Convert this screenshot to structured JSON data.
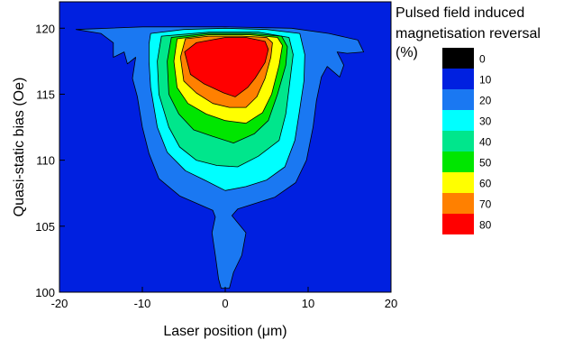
{
  "chart_data": {
    "type": "heatmap",
    "subtype": "filled-contour",
    "xlabel": "Laser position (μm)",
    "ylabel": "Quasi-static bias (Oe)",
    "xlim": [
      -20,
      20
    ],
    "ylim": [
      100,
      122
    ],
    "x_ticks": [
      "-20",
      "-10",
      "0",
      "10",
      "20"
    ],
    "x_tick_values": [
      -20,
      -10,
      0,
      10,
      20
    ],
    "y_ticks": [
      "100",
      "105",
      "110",
      "115",
      "120"
    ],
    "y_tick_values": [
      100,
      105,
      110,
      115,
      120
    ],
    "background_color": "#0020e0",
    "colorbar": {
      "title_lines": [
        "Pulsed field induced",
        "magnetisation reversal",
        "(%)"
      ],
      "labels": [
        "0",
        "10",
        "20",
        "30",
        "40",
        "50",
        "60",
        "70",
        "80"
      ],
      "colors": [
        "#000000",
        "#0020e0",
        "#1a78f2",
        "#00ffff",
        "#00e68c",
        "#00e600",
        "#ffff00",
        "#ff8000",
        "#ff0000"
      ]
    },
    "contours": [
      {
        "level": "10-20",
        "color": "#1a78f2",
        "points": [
          [
            -18,
            119.9
          ],
          [
            -15,
            119.6
          ],
          [
            -13.5,
            118.9
          ],
          [
            -13.5,
            117.8
          ],
          [
            -12.2,
            118.2
          ],
          [
            -11.8,
            117.3
          ],
          [
            -10.8,
            117.8
          ],
          [
            -11.2,
            116.2
          ],
          [
            -10.6,
            114.8
          ],
          [
            -10,
            112.5
          ],
          [
            -9.2,
            110.5
          ],
          [
            -8,
            108.6
          ],
          [
            -5.5,
            107.3
          ],
          [
            -1.5,
            106.2
          ],
          [
            -1.2,
            105.7
          ],
          [
            -1.6,
            104.5
          ],
          [
            -1.2,
            102.8
          ],
          [
            -0.8,
            101
          ],
          [
            -0.5,
            100.3
          ],
          [
            0.5,
            100.3
          ],
          [
            1,
            101.5
          ],
          [
            2,
            102.8
          ],
          [
            2.5,
            104.5
          ],
          [
            0.8,
            105.8
          ],
          [
            1.5,
            106.3
          ],
          [
            6,
            107.2
          ],
          [
            8.5,
            108.3
          ],
          [
            9.8,
            110
          ],
          [
            10.6,
            112.5
          ],
          [
            11,
            114.5
          ],
          [
            11.6,
            116.3
          ],
          [
            12.3,
            117.1
          ],
          [
            13.8,
            116.3
          ],
          [
            14.3,
            117.2
          ],
          [
            13.5,
            118.2
          ],
          [
            14.7,
            118.1
          ],
          [
            16.7,
            118.2
          ],
          [
            16,
            119.1
          ],
          [
            12.5,
            119.6
          ],
          [
            8,
            120
          ],
          [
            0,
            120.1
          ],
          [
            -10,
            120.1
          ]
        ]
      },
      {
        "level": "20-30",
        "color": "#00ffff",
        "points": [
          [
            -9,
            119.6
          ],
          [
            -9.2,
            118.8
          ],
          [
            -9.2,
            117.5
          ],
          [
            -9,
            115.5
          ],
          [
            -8.2,
            112.5
          ],
          [
            -7,
            110.6
          ],
          [
            -4.8,
            109.2
          ],
          [
            -2.5,
            108.5
          ],
          [
            0,
            107.7
          ],
          [
            2.5,
            108
          ],
          [
            5,
            108.5
          ],
          [
            7.2,
            109.5
          ],
          [
            8.4,
            111.5
          ],
          [
            8.9,
            113.5
          ],
          [
            9.5,
            116
          ],
          [
            9.6,
            118
          ],
          [
            9,
            119.6
          ],
          [
            5,
            119.9
          ],
          [
            0,
            120
          ],
          [
            -5,
            119.9
          ]
        ]
      },
      {
        "level": "30-40",
        "color": "#00e68c",
        "points": [
          [
            -7.7,
            119.4
          ],
          [
            -8.2,
            117.5
          ],
          [
            -8,
            115
          ],
          [
            -6.8,
            112.5
          ],
          [
            -5.5,
            111
          ],
          [
            -3.5,
            110
          ],
          [
            -1,
            109.6
          ],
          [
            1.5,
            109.5
          ],
          [
            4,
            110.3
          ],
          [
            6.5,
            111.5
          ],
          [
            7.3,
            113.5
          ],
          [
            7.8,
            116
          ],
          [
            8.2,
            118
          ],
          [
            7.7,
            119.3
          ],
          [
            4,
            119.7
          ],
          [
            -2,
            119.7
          ]
        ]
      },
      {
        "level": "40-50",
        "color": "#00e600",
        "points": [
          [
            -6.5,
            119.3
          ],
          [
            -7,
            117.5
          ],
          [
            -6.8,
            115
          ],
          [
            -5.6,
            113.5
          ],
          [
            -3.8,
            112.3
          ],
          [
            -1.5,
            111.8
          ],
          [
            1,
            111.3
          ],
          [
            3.5,
            112
          ],
          [
            5.2,
            113
          ],
          [
            6.3,
            115
          ],
          [
            7.3,
            117.2
          ],
          [
            7.5,
            118.6
          ],
          [
            6.8,
            119.4
          ],
          [
            3,
            119.6
          ],
          [
            -2,
            119.6
          ]
        ]
      },
      {
        "level": "50-60",
        "color": "#ffff00",
        "points": [
          [
            -5.8,
            119.2
          ],
          [
            -6.2,
            117.5
          ],
          [
            -5.8,
            115.5
          ],
          [
            -4.5,
            114.3
          ],
          [
            -2.3,
            113.5
          ],
          [
            0,
            113
          ],
          [
            2.5,
            112.8
          ],
          [
            4.5,
            113.6
          ],
          [
            5.6,
            115
          ],
          [
            6.5,
            117.2
          ],
          [
            6.9,
            118.7
          ],
          [
            6.3,
            119.3
          ],
          [
            3,
            119.5
          ],
          [
            -2,
            119.5
          ]
        ]
      },
      {
        "level": "60-70",
        "color": "#ff8000",
        "points": [
          [
            -4.8,
            119.2
          ],
          [
            -5.4,
            117.8
          ],
          [
            -5,
            116
          ],
          [
            -3.5,
            115.1
          ],
          [
            -1.5,
            114.3
          ],
          [
            0.5,
            114
          ],
          [
            2.5,
            114
          ],
          [
            3.8,
            114.8
          ],
          [
            4.8,
            116.2
          ],
          [
            5.5,
            117.8
          ],
          [
            5.7,
            118.9
          ],
          [
            5,
            119.3
          ],
          [
            2,
            119.4
          ],
          [
            -2,
            119.4
          ]
        ]
      },
      {
        "level": "70-80",
        "color": "#ff0000",
        "points": [
          [
            -3.5,
            118.9
          ],
          [
            -4.9,
            118.2
          ],
          [
            -4.2,
            116.5
          ],
          [
            -2.6,
            115.8
          ],
          [
            -0.2,
            115.1
          ],
          [
            1.2,
            114.8
          ],
          [
            2.7,
            115.5
          ],
          [
            3.6,
            116.2
          ],
          [
            4.8,
            117.4
          ],
          [
            5.2,
            118.4
          ],
          [
            4.8,
            119
          ],
          [
            2.5,
            119.3
          ],
          [
            0,
            119.3
          ]
        ]
      }
    ]
  }
}
